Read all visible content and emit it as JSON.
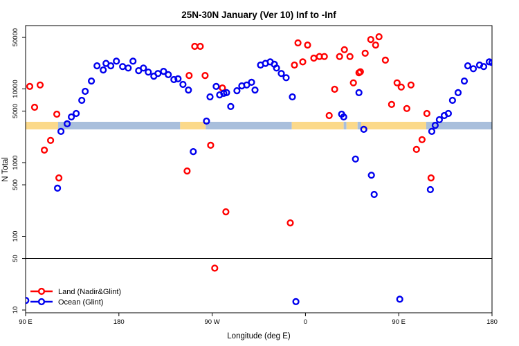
{
  "chart_data": {
    "type": "scatter",
    "title": "25N-30N January (Ver 10)   Inf to -Inf",
    "xlabel": "Longitude (deg E)",
    "ylabel": "N Total",
    "x_axis": {
      "range": [
        90,
        540
      ],
      "ticks": [
        {
          "value": 90,
          "label": "90 E"
        },
        {
          "value": 180,
          "label": "180"
        },
        {
          "value": 270,
          "label": "90 W"
        },
        {
          "value": 360,
          "label": "0"
        },
        {
          "value": 450,
          "label": "90 E"
        },
        {
          "value": 540,
          "label": "180"
        }
      ]
    },
    "y_axis": {
      "scale": "log",
      "range": [
        9.2,
        72000
      ],
      "ticks": [
        {
          "value": 50000,
          "label": "50000"
        },
        {
          "value": 10000,
          "label": "10000"
        },
        {
          "value": 5000,
          "label": "5000"
        },
        {
          "value": 1000,
          "label": "1000"
        },
        {
          "value": 500,
          "label": "500"
        },
        {
          "value": 100,
          "label": "100"
        },
        {
          "value": 50,
          "label": "50"
        },
        {
          "value": 10,
          "label": "10"
        }
      ]
    },
    "reference_line": {
      "value": 50,
      "color": "#000000"
    },
    "surface_band": {
      "value_range": [
        2820,
        3580
      ],
      "land_color": "#FBD98A",
      "ocean_color": "#A9BFDC",
      "segments": [
        {
          "surface": "land",
          "from": 90,
          "to": 121.4
        },
        {
          "surface": "ocean",
          "from": 121.4,
          "to": 239.1
        },
        {
          "surface": "land",
          "from": 239.1,
          "to": 263.8
        },
        {
          "surface": "ocean",
          "from": 263.8,
          "to": 346.8
        },
        {
          "surface": "land",
          "from": 346.8,
          "to": 396.9
        },
        {
          "surface": "ocean",
          "from": 396.9,
          "to": 399.6
        },
        {
          "surface": "land",
          "from": 399.6,
          "to": 410.3
        },
        {
          "surface": "ocean",
          "from": 410.3,
          "to": 413.7
        },
        {
          "surface": "land",
          "from": 413.7,
          "to": 476.5
        },
        {
          "surface": "ocean",
          "from": 476.5,
          "to": 540
        }
      ]
    },
    "legend": {
      "position": "bottom-left"
    },
    "series": [
      {
        "name": "Land (Nadir&Glint)",
        "color": "#FF0000",
        "points": [
          [
            94.0,
            10800
          ],
          [
            104.0,
            11300
          ],
          [
            98.7,
            5640
          ],
          [
            120.1,
            4540
          ],
          [
            114.1,
            2000
          ],
          [
            108.1,
            1480
          ],
          [
            122.1,
            620
          ],
          [
            245.8,
            770
          ],
          [
            247.8,
            15200
          ],
          [
            253.2,
            37800
          ],
          [
            258.5,
            37800
          ],
          [
            263.2,
            15200
          ],
          [
            268.5,
            1720
          ],
          [
            272.5,
            37
          ],
          [
            279.9,
            10300
          ],
          [
            283.2,
            215
          ],
          [
            345.4,
            152
          ],
          [
            349.4,
            21100
          ],
          [
            352.8,
            42100
          ],
          [
            357.4,
            23300
          ],
          [
            362.1,
            39400
          ],
          [
            368.1,
            26200
          ],
          [
            373.5,
            27500
          ],
          [
            378.2,
            27500
          ],
          [
            382.9,
            4350
          ],
          [
            388.2,
            9900
          ],
          [
            392.9,
            27500
          ],
          [
            397.6,
            34100
          ],
          [
            402.9,
            27500
          ],
          [
            406.3,
            12100
          ],
          [
            411.6,
            16600
          ],
          [
            413.0,
            17100
          ],
          [
            417.6,
            30500
          ],
          [
            423.0,
            46800
          ],
          [
            427.7,
            39400
          ],
          [
            431.0,
            51000
          ],
          [
            437.1,
            24600
          ],
          [
            443.1,
            6160
          ],
          [
            448.4,
            12100
          ],
          [
            452.4,
            10600
          ],
          [
            457.8,
            5420
          ],
          [
            461.8,
            11300
          ],
          [
            467.1,
            1510
          ],
          [
            472.5,
            2050
          ],
          [
            477.2,
            4640
          ],
          [
            481.2,
            620
          ]
        ]
      },
      {
        "name": "Ocean (Glint)",
        "color": "#0000EE",
        "points": [
          [
            90.2,
            13.5
          ],
          [
            120.8,
            450
          ],
          [
            124.1,
            2650
          ],
          [
            130.1,
            3360
          ],
          [
            134.1,
            4170
          ],
          [
            138.8,
            4640
          ],
          [
            144.2,
            7000
          ],
          [
            147.5,
            9270
          ],
          [
            153.5,
            12800
          ],
          [
            158.9,
            20600
          ],
          [
            164.9,
            18100
          ],
          [
            167.6,
            22200
          ],
          [
            172.2,
            20600
          ],
          [
            177.6,
            23800
          ],
          [
            183.6,
            20100
          ],
          [
            189.0,
            19200
          ],
          [
            193.6,
            23800
          ],
          [
            199.0,
            17700
          ],
          [
            203.7,
            19200
          ],
          [
            208.4,
            16900
          ],
          [
            213.7,
            14900
          ],
          [
            217.7,
            16200
          ],
          [
            223.1,
            17300
          ],
          [
            227.7,
            15600
          ],
          [
            233.1,
            13400
          ],
          [
            237.1,
            13700
          ],
          [
            241.8,
            11500
          ],
          [
            247.1,
            9650
          ],
          [
            251.8,
            1410
          ],
          [
            264.5,
            3660
          ],
          [
            267.9,
            7800
          ],
          [
            273.9,
            10800
          ],
          [
            277.2,
            8300
          ],
          [
            281.2,
            8700
          ],
          [
            283.9,
            8900
          ],
          [
            287.9,
            5770
          ],
          [
            293.9,
            9450
          ],
          [
            298.6,
            11000
          ],
          [
            303.3,
            11300
          ],
          [
            308.0,
            12300
          ],
          [
            311.3,
            9650
          ],
          [
            316.7,
            21100
          ],
          [
            321.4,
            22200
          ],
          [
            326.0,
            23300
          ],
          [
            330.0,
            21600
          ],
          [
            332.1,
            19200
          ],
          [
            336.7,
            16200
          ],
          [
            341.4,
            14200
          ],
          [
            347.4,
            7800
          ],
          [
            350.8,
            13
          ],
          [
            394.9,
            4540
          ],
          [
            396.9,
            4170
          ],
          [
            408.3,
            1120
          ],
          [
            411.6,
            8900
          ],
          [
            416.3,
            2830
          ],
          [
            423.6,
            675
          ],
          [
            426.3,
            370
          ],
          [
            451.0,
            14
          ],
          [
            480.5,
            430
          ],
          [
            481.9,
            2650
          ],
          [
            485.2,
            3210
          ],
          [
            489.2,
            3820
          ],
          [
            493.9,
            4350
          ],
          [
            497.9,
            4640
          ],
          [
            501.9,
            7000
          ],
          [
            507.3,
            8900
          ],
          [
            513.3,
            12800
          ],
          [
            516.6,
            20600
          ],
          [
            522.0,
            18800
          ],
          [
            528.0,
            21100
          ],
          [
            532.0,
            20100
          ],
          [
            537.3,
            23300
          ],
          [
            540.0,
            22800
          ]
        ]
      }
    ]
  }
}
